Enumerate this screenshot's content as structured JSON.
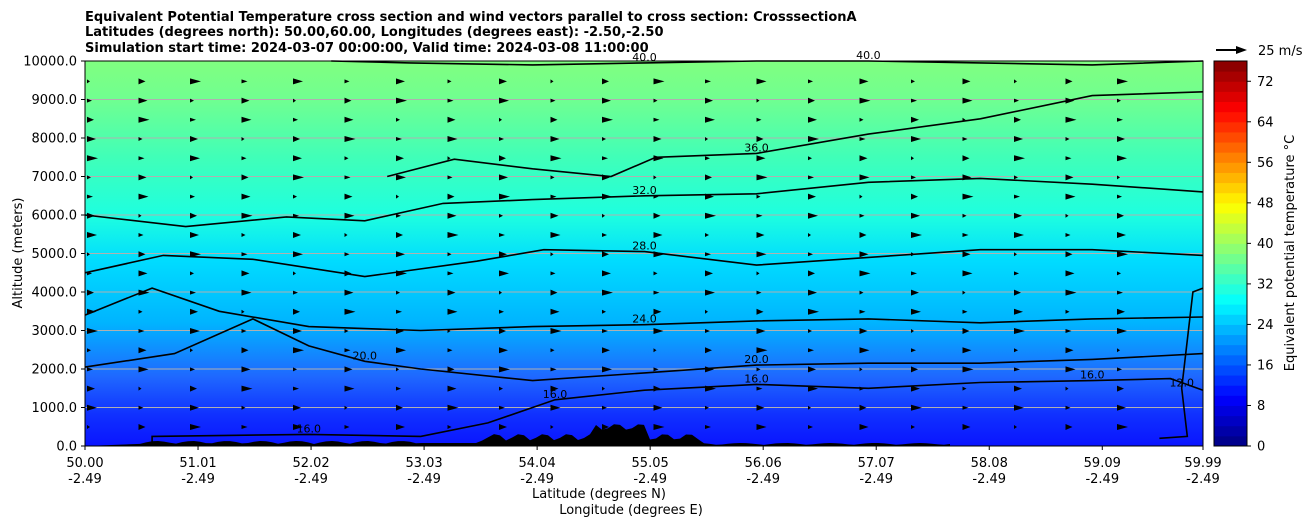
{
  "chart_data": {
    "type": "contour-cross-section",
    "title_lines": [
      "Equivalent Potential Temperature cross section and wind vectors parallel to cross section: CrosssectionA",
      "Latitudes (degrees north): 50.00,60.00, Longitudes (degrees east): -2.50,-2.50",
      "Simulation start time: 2024-03-07 00:00:00, Valid time: 2024-03-08 11:00:00"
    ],
    "xlabel_lines": [
      "Latitude (degrees N)",
      "Longitude (degrees E)"
    ],
    "ylabel": "Altitude (meters)",
    "xlim": [
      50.0,
      59.99
    ],
    "ylim": [
      0,
      10000
    ],
    "x_ticks": [
      {
        "lat": "50.00",
        "lon": "-2.49",
        "v": 50.0
      },
      {
        "lat": "51.01",
        "lon": "-2.49",
        "v": 51.01
      },
      {
        "lat": "52.02",
        "lon": "-2.49",
        "v": 52.02
      },
      {
        "lat": "53.03",
        "lon": "-2.49",
        "v": 53.03
      },
      {
        "lat": "54.04",
        "lon": "-2.49",
        "v": 54.04
      },
      {
        "lat": "55.05",
        "lon": "-2.49",
        "v": 55.05
      },
      {
        "lat": "56.06",
        "lon": "-2.49",
        "v": 56.06
      },
      {
        "lat": "57.07",
        "lon": "-2.49",
        "v": 57.07
      },
      {
        "lat": "58.08",
        "lon": "-2.49",
        "v": 58.08
      },
      {
        "lat": "59.09",
        "lon": "-2.49",
        "v": 59.09
      },
      {
        "lat": "59.99",
        "lon": "-2.49",
        "v": 59.99
      }
    ],
    "y_ticks": [
      {
        "label": "0.0",
        "v": 0
      },
      {
        "label": "1000.0",
        "v": 1000
      },
      {
        "label": "2000.0",
        "v": 2000
      },
      {
        "label": "3000.0",
        "v": 3000
      },
      {
        "label": "4000.0",
        "v": 4000
      },
      {
        "label": "5000.0",
        "v": 5000
      },
      {
        "label": "6000.0",
        "v": 6000
      },
      {
        "label": "7000.0",
        "v": 7000
      },
      {
        "label": "8000.0",
        "v": 8000
      },
      {
        "label": "9000.0",
        "v": 9000
      },
      {
        "label": "10000.0",
        "v": 10000
      }
    ],
    "grid": "horizontal",
    "colorbar": {
      "label": "Equivalent potential temperature $^\\circ$C",
      "range": [
        0,
        76
      ],
      "ticks": [
        "0",
        "8",
        "16",
        "24",
        "32",
        "40",
        "48",
        "56",
        "64",
        "72"
      ],
      "colormap": "jet"
    },
    "wind_key": {
      "label": "25 m/s"
    },
    "contour_levels": [
      {
        "level": 12,
        "labels": [
          "12.0"
        ],
        "points": [
          [
            59.6,
            200
          ],
          [
            59.85,
            250
          ],
          [
            59.8,
            1500
          ],
          [
            59.9,
            4000
          ],
          [
            59.99,
            4100
          ]
        ]
      },
      {
        "level": 16,
        "labels": [
          "16.0",
          "16.0",
          "16.0",
          "16.0"
        ],
        "points": [
          [
            50.6,
            0
          ],
          [
            50.6,
            250
          ],
          [
            52.0,
            300
          ],
          [
            53.0,
            250
          ],
          [
            53.6,
            600
          ],
          [
            54.2,
            1200
          ],
          [
            55.0,
            1450
          ],
          [
            56.0,
            1600
          ],
          [
            57.0,
            1500
          ],
          [
            58.0,
            1650
          ],
          [
            59.0,
            1700
          ],
          [
            59.7,
            1750
          ],
          [
            59.99,
            1450
          ]
        ]
      },
      {
        "level": 20,
        "labels": [
          "20.0",
          "20.0"
        ],
        "points": [
          [
            50.0,
            2050
          ],
          [
            50.8,
            2400
          ],
          [
            51.5,
            3300
          ],
          [
            52.0,
            2600
          ],
          [
            52.5,
            2200
          ],
          [
            53.0,
            2000
          ],
          [
            54.0,
            1700
          ],
          [
            55.0,
            1900
          ],
          [
            56.0,
            2100
          ],
          [
            57.0,
            2150
          ],
          [
            58.0,
            2150
          ],
          [
            59.0,
            2250
          ],
          [
            59.99,
            2400
          ]
        ]
      },
      {
        "level": 24,
        "labels": [
          "24.0"
        ],
        "points": [
          [
            50.0,
            3400
          ],
          [
            50.6,
            4100
          ],
          [
            51.2,
            3500
          ],
          [
            52.0,
            3100
          ],
          [
            53.0,
            3000
          ],
          [
            54.0,
            3100
          ],
          [
            55.0,
            3150
          ],
          [
            56.0,
            3250
          ],
          [
            57.0,
            3300
          ],
          [
            58.0,
            3200
          ],
          [
            59.0,
            3300
          ],
          [
            59.99,
            3350
          ]
        ]
      },
      {
        "level": 28,
        "labels": [
          "28.0"
        ],
        "points": [
          [
            50.0,
            4500
          ],
          [
            50.7,
            4950
          ],
          [
            51.5,
            4850
          ],
          [
            52.5,
            4400
          ],
          [
            53.5,
            4800
          ],
          [
            54.1,
            5100
          ],
          [
            55.0,
            5050
          ],
          [
            56.0,
            4700
          ],
          [
            57.0,
            4900
          ],
          [
            58.0,
            5100
          ],
          [
            59.0,
            5100
          ],
          [
            59.99,
            4950
          ]
        ]
      },
      {
        "level": 32,
        "labels": [
          "32.0"
        ],
        "points": [
          [
            50.0,
            6000
          ],
          [
            50.9,
            5700
          ],
          [
            51.8,
            5950
          ],
          [
            52.5,
            5850
          ],
          [
            53.2,
            6300
          ],
          [
            54.0,
            6400
          ],
          [
            55.0,
            6500
          ],
          [
            56.0,
            6550
          ],
          [
            57.0,
            6850
          ],
          [
            58.0,
            6950
          ],
          [
            59.0,
            6800
          ],
          [
            59.99,
            6600
          ]
        ]
      },
      {
        "level": 36,
        "labels": [
          "36.0"
        ],
        "points": [
          [
            52.7,
            7000
          ],
          [
            53.3,
            7450
          ],
          [
            54.0,
            7200
          ],
          [
            54.7,
            7000
          ],
          [
            55.1,
            7500
          ],
          [
            56.0,
            7600
          ],
          [
            57.0,
            8100
          ],
          [
            58.0,
            8500
          ],
          [
            59.0,
            9100
          ],
          [
            59.99,
            9200
          ]
        ]
      },
      {
        "level": 40,
        "labels": [
          "40.0",
          "40.0"
        ],
        "points": [
          [
            52.2,
            10000
          ],
          [
            52.9,
            9950
          ],
          [
            54.0,
            9900
          ],
          [
            55.0,
            9950
          ],
          [
            56.0,
            10000
          ],
          [
            57.0,
            10000
          ],
          [
            58.0,
            9950
          ],
          [
            59.0,
            9900
          ],
          [
            59.99,
            10000
          ]
        ]
      }
    ],
    "wind_vectors": "arrows on regular grid pointing along +x (northward), speed 2-15 m/s"
  }
}
